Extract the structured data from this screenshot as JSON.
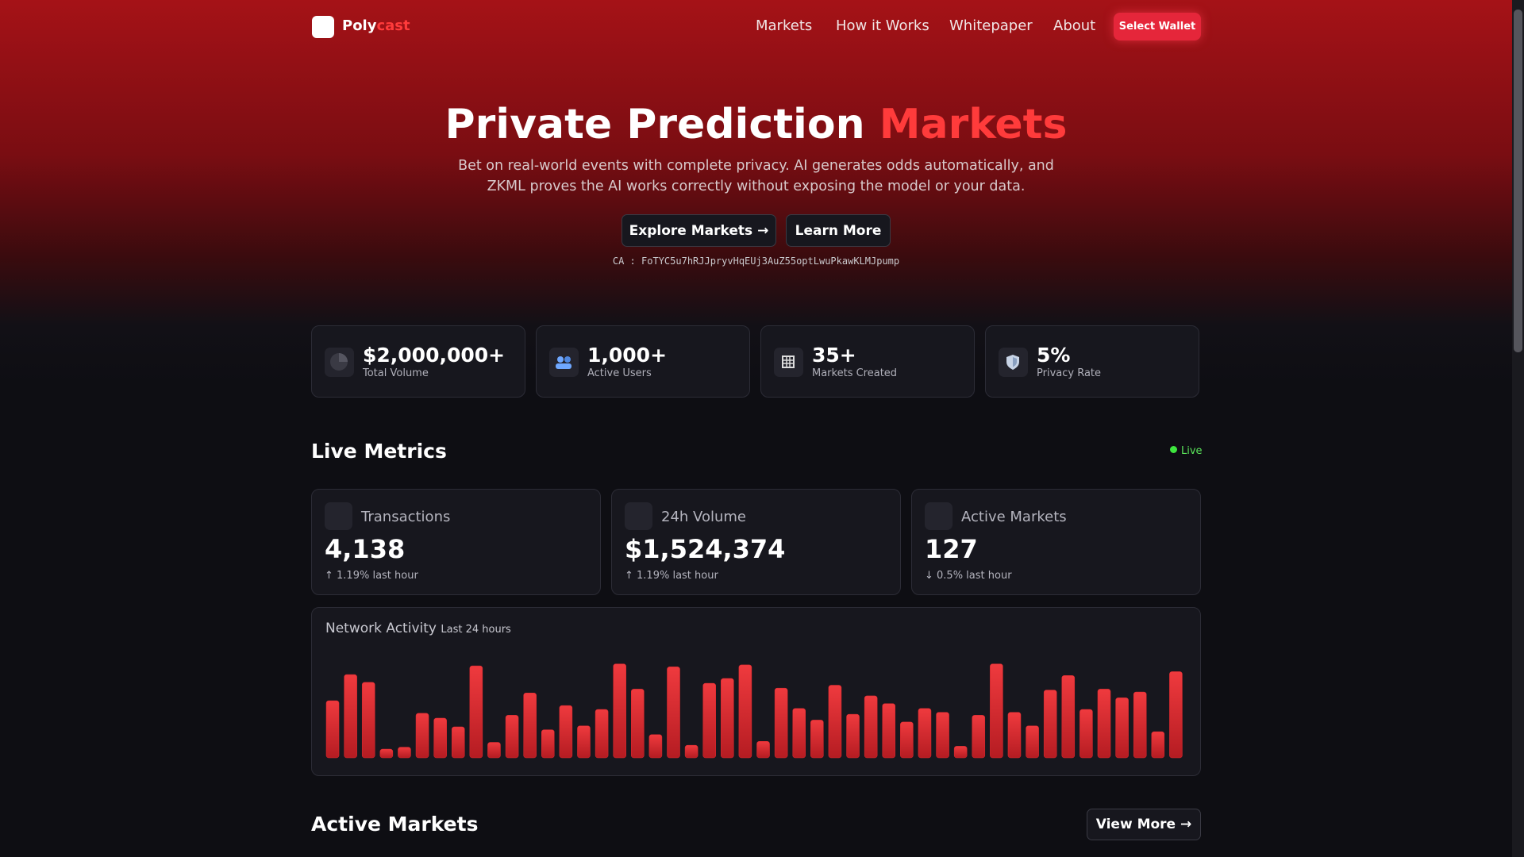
{
  "nav": {
    "brand_prefix": "Poly",
    "brand_suffix": "cast",
    "links": [
      "Markets",
      "How it Works",
      "Whitepaper",
      "About"
    ],
    "button": "Select Wallet"
  },
  "hero": {
    "title_prefix": "Private Prediction",
    "title_highlight": "Markets",
    "subtitle": "Bet on real-world events with complete privacy. AI generates odds automatically, and ZKML proves the AI works correctly without exposing the model or your data.",
    "buttons": [
      "Explore Markets →",
      "Learn More"
    ],
    "ca_label": "CA :",
    "ca": "FoTYC5u7hRJJpryvHqEUj3AuZ55optLwuPkawKLMJpump"
  },
  "stats": [
    {
      "value": "$2,000,000+",
      "label": "Total Volume"
    },
    {
      "value": "1,000+",
      "label": "Active Users"
    },
    {
      "value": "35+",
      "label": "Markets Created"
    },
    {
      "value": "5%",
      "label": "Privacy Rate"
    }
  ],
  "live_metrics": {
    "title": "Live Metrics",
    "status": "Live",
    "cards": [
      {
        "label": "Transactions",
        "value": "4,138",
        "change": "↑ 1.19% last hour"
      },
      {
        "label": "24h Volume",
        "value": "$1,524,374",
        "change": "↑ 1.19% last hour"
      },
      {
        "label": "Active Markets",
        "value": "127",
        "change": "↓ 0.5% last hour"
      }
    ]
  },
  "network_activity": {
    "type": "bar",
    "title": "Network Activity",
    "subtitle": "Last 24 hours",
    "color": "#e0282e",
    "ylim": [
      0,
      100
    ],
    "values": [
      59,
      86,
      78,
      9,
      11,
      46,
      41,
      32,
      95,
      16,
      44,
      67,
      29,
      54,
      33,
      50,
      97,
      71,
      24,
      94,
      13,
      77,
      82,
      96,
      17,
      72,
      51,
      39,
      75,
      45,
      64,
      56,
      37,
      51,
      47,
      12,
      44,
      97,
      47,
      33,
      70,
      85,
      50,
      71,
      62,
      68,
      27,
      89
    ]
  },
  "active_markets": {
    "title": "Active Markets",
    "button": "View More →"
  }
}
